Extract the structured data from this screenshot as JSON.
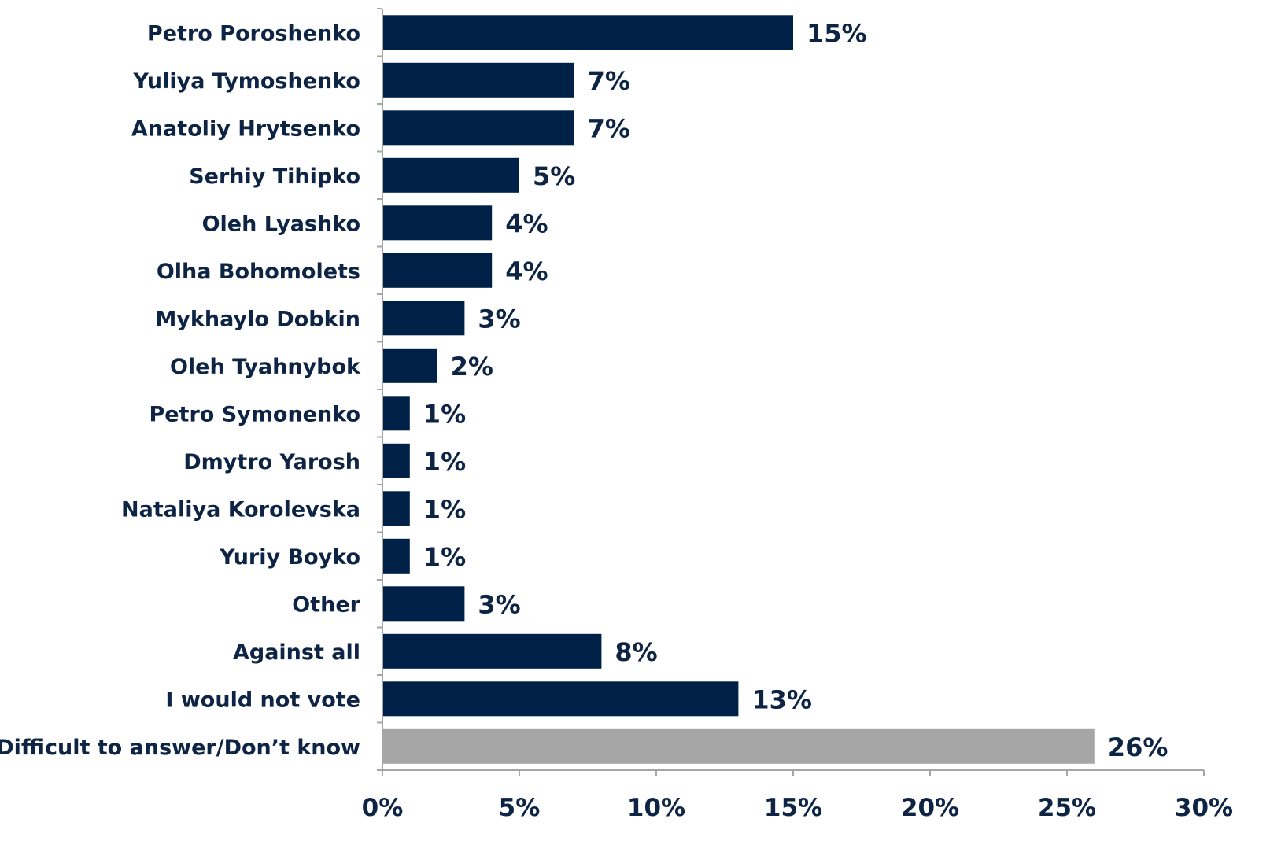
{
  "chart_data": {
    "type": "bar",
    "orientation": "horizontal",
    "categories": [
      "Petro Poroshenko",
      "Yuliya Tymoshenko",
      "Anatoliy Hrytsenko",
      "Serhiy Tihipko",
      "Oleh Lyashko",
      "Olha Bohomolets",
      "Mykhaylo Dobkin",
      "Oleh Tyahnybok",
      "Petro Symonenko",
      "Dmytro Yarosh",
      "Nataliya Korolevska",
      "Yuriy Boyko",
      "Other",
      "Against all",
      "I would not vote",
      "Difficult to answer/Don’t know"
    ],
    "values": [
      15,
      7,
      7,
      5,
      4,
      4,
      3,
      2,
      1,
      1,
      1,
      1,
      3,
      8,
      13,
      26
    ],
    "value_labels": [
      "15%",
      "7%",
      "7%",
      "5%",
      "4%",
      "4%",
      "3%",
      "2%",
      "1%",
      "1%",
      "1%",
      "1%",
      "3%",
      "8%",
      "13%",
      "26%"
    ],
    "bar_colors": [
      "#002147",
      "#002147",
      "#002147",
      "#002147",
      "#002147",
      "#002147",
      "#002147",
      "#002147",
      "#002147",
      "#002147",
      "#002147",
      "#002147",
      "#002147",
      "#002147",
      "#002147",
      "#a6a6a6"
    ],
    "xlim": [
      0,
      30
    ],
    "xticks": [
      0,
      5,
      10,
      15,
      20,
      25,
      30
    ],
    "xtick_labels": [
      "0%",
      "5%",
      "10%",
      "15%",
      "20%",
      "25%",
      "30%"
    ],
    "title": "",
    "xlabel": "",
    "ylabel": "",
    "grid": false,
    "legend": "none",
    "text_color": "#0d2444",
    "axis_color": "#a6a6a6"
  }
}
